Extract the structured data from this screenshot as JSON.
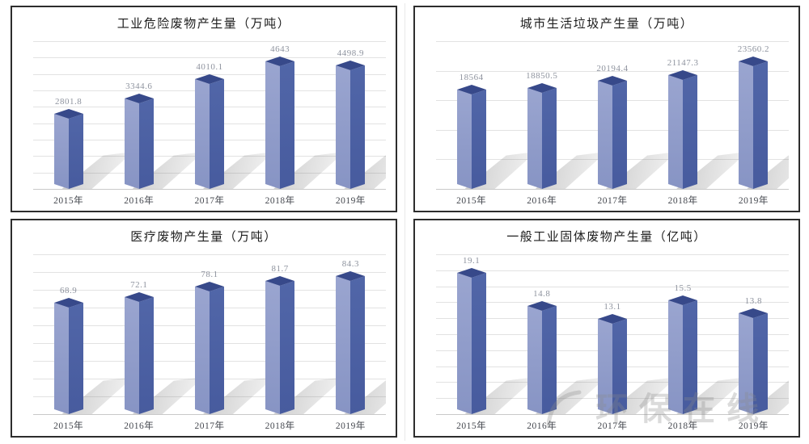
{
  "watermark": {
    "text": "环保在线"
  },
  "colors": {
    "panel_border": "#2d2d2d",
    "gridline": "#e2e2e2",
    "axis_line": "#c9c9c9",
    "bar_left_face": "#9aa5d0",
    "bar_left_face_dark": "#8794c4",
    "bar_right_face": "#5166a8",
    "bar_right_face_dark": "#475b9e",
    "bar_top_face": "#37498a",
    "value_label": "#8e939e",
    "x_label": "#45484f",
    "shadow": "#bdbdbd"
  },
  "chart_data": [
    {
      "type": "bar",
      "title": "工业危险废物产生量（万吨）",
      "ylabel": "万吨",
      "categories": [
        "2015年",
        "2016年",
        "2017年",
        "2018年",
        "2019年"
      ],
      "values": [
        2801.8,
        3344.6,
        4010.1,
        4643,
        4498.9
      ],
      "labels": [
        "2801.8",
        "3344.6",
        "4010.1",
        "4643",
        "4498.9"
      ],
      "ylim": [
        0,
        5200
      ],
      "grid_divisions": 9,
      "grid": true,
      "legend": false
    },
    {
      "type": "bar",
      "title": "城市生活垃圾产生量（万吨）",
      "ylabel": "万吨",
      "categories": [
        "2015年",
        "2016年",
        "2017年",
        "2018年",
        "2019年"
      ],
      "values": [
        18564,
        18850.5,
        20194.4,
        21147.3,
        23560.2
      ],
      "labels": [
        "18564",
        "18850.5",
        "20194.4",
        "21147.3",
        "23560.2"
      ],
      "ylim": [
        0,
        26500
      ],
      "grid_divisions": 5,
      "grid": true,
      "legend": false
    },
    {
      "type": "bar",
      "title": "医疗废物产生量（万吨）",
      "ylabel": "万吨",
      "categories": [
        "2015年",
        "2016年",
        "2017年",
        "2018年",
        "2019年"
      ],
      "values": [
        68.9,
        72.1,
        78.1,
        81.7,
        84.3
      ],
      "labels": [
        "68.9",
        "72.1",
        "78.1",
        "81.7",
        "84.3"
      ],
      "ylim": [
        0,
        95
      ],
      "grid_divisions": 9,
      "grid": true,
      "legend": false
    },
    {
      "type": "bar",
      "title": "一般工业固体废物产生量（亿吨）",
      "ylabel": "亿吨",
      "categories": [
        "2015年",
        "2016年",
        "2017年",
        "2018年",
        "2019年"
      ],
      "values": [
        19.1,
        14.8,
        13.1,
        15.5,
        13.8
      ],
      "labels": [
        "19.1",
        "14.8",
        "13.1",
        "15.5",
        "13.8"
      ],
      "ylim": [
        0,
        21
      ],
      "grid_divisions": 10,
      "grid": true,
      "legend": false
    }
  ]
}
